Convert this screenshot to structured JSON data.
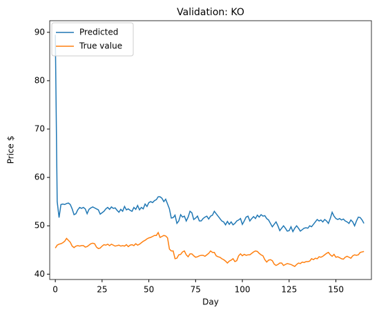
{
  "chart_data": {
    "type": "line",
    "title": "Validation: KO",
    "xlabel": "Day",
    "ylabel": "Price $",
    "x": [
      0,
      1,
      2,
      3,
      4,
      5,
      6,
      7,
      8,
      9,
      10,
      11,
      12,
      13,
      14,
      15,
      16,
      17,
      18,
      19,
      20,
      21,
      22,
      23,
      24,
      25,
      26,
      27,
      28,
      29,
      30,
      31,
      32,
      33,
      34,
      35,
      36,
      37,
      38,
      39,
      40,
      41,
      42,
      43,
      44,
      45,
      46,
      47,
      48,
      49,
      50,
      51,
      52,
      53,
      54,
      55,
      56,
      57,
      58,
      59,
      60,
      61,
      62,
      63,
      64,
      65,
      66,
      67,
      68,
      69,
      70,
      71,
      72,
      73,
      74,
      75,
      76,
      77,
      78,
      79,
      80,
      81,
      82,
      83,
      84,
      85,
      86,
      87,
      88,
      89,
      90,
      91,
      92,
      93,
      94,
      95,
      96,
      97,
      98,
      99,
      100,
      101,
      102,
      103,
      104,
      105,
      106,
      107,
      108,
      109,
      110,
      111,
      112,
      113,
      114,
      115,
      116,
      117,
      118,
      119,
      120,
      121,
      122,
      123,
      124,
      125,
      126,
      127,
      128,
      129,
      130,
      131,
      132,
      133,
      134,
      135,
      136,
      137,
      138,
      139,
      140,
      141,
      142,
      143,
      144,
      145,
      146,
      147,
      148,
      149,
      150,
      151,
      152,
      153,
      154,
      155,
      156,
      157,
      158,
      159,
      160,
      161,
      162,
      163,
      164,
      165
    ],
    "series": [
      {
        "name": "Predicted",
        "color": "#1f77b4",
        "values": [
          89.5,
          55,
          51.7,
          54.4,
          54.5,
          54.4,
          54.6,
          54.7,
          54.4,
          53.5,
          52.3,
          52.5,
          53.3,
          53.8,
          53.6,
          53.8,
          53.5,
          52.5,
          53.4,
          53.7,
          53.9,
          53.7,
          53.5,
          53.3,
          52.4,
          52.7,
          53.0,
          53.5,
          53.8,
          53.4,
          53.9,
          53.6,
          53.7,
          53.2,
          52.8,
          53.4,
          53.0,
          54.0,
          53.3,
          53.5,
          53.2,
          53.0,
          53.8,
          53.4,
          54.2,
          53.3,
          53.8,
          53.5,
          54.5,
          54.0,
          54.8,
          55.0,
          54.8,
          55.2,
          55.4,
          56.0,
          56.0,
          55.7,
          55.0,
          55.5,
          54.5,
          53.5,
          51.6,
          51.7,
          52.2,
          50.5,
          51.0,
          52.3,
          51.8,
          52.0,
          51.0,
          51.8,
          53.0,
          52.7,
          51.3,
          51.6,
          52.0,
          51.0,
          51.0,
          51.5,
          51.8,
          52.0,
          51.4,
          52.0,
          52.2,
          53.0,
          52.5,
          52.0,
          51.5,
          51.0,
          50.8,
          50.2,
          50.9,
          50.3,
          50.8,
          50.2,
          50.5,
          51.0,
          51.2,
          51.5,
          50.3,
          51.0,
          51.8,
          52.0,
          51.0,
          51.5,
          51.9,
          51.5,
          52.2,
          51.8,
          52.3,
          52.0,
          52.1,
          51.5,
          51.2,
          50.5,
          49.8,
          50.3,
          50.8,
          50.0,
          49.0,
          49.5,
          50.0,
          49.5,
          48.9,
          49.0,
          49.8,
          48.8,
          49.5,
          50.0,
          49.5,
          48.9,
          49.2,
          49.5,
          49.6,
          49.5,
          50.0,
          49.8,
          50.3,
          50.8,
          51.3,
          51.0,
          51.2,
          50.8,
          51.3,
          51.0,
          50.5,
          51.5,
          52.8,
          52.0,
          51.5,
          51.3,
          51.5,
          51.2,
          51.4,
          51.0,
          50.8,
          50.5,
          51.2,
          50.8,
          50.0,
          51.0,
          51.8,
          51.7,
          51.2,
          50.5
        ]
      },
      {
        "name": "True value",
        "color": "#ff7f0e",
        "values": [
          45.4,
          46.0,
          46.2,
          46.3,
          46.5,
          46.8,
          47.4,
          47.0,
          46.6,
          45.8,
          45.5,
          45.8,
          45.9,
          45.8,
          45.9,
          45.9,
          45.6,
          45.7,
          46.0,
          46.3,
          46.4,
          46.3,
          45.6,
          45.3,
          45.4,
          45.8,
          46.1,
          46.0,
          46.2,
          45.9,
          46.2,
          46.0,
          45.8,
          45.9,
          46.0,
          45.8,
          45.9,
          45.8,
          46.1,
          45.7,
          46.0,
          46.1,
          45.9,
          46.3,
          46.0,
          46.2,
          46.5,
          46.8,
          47.0,
          47.3,
          47.5,
          47.6,
          47.8,
          48.0,
          48.0,
          48.6,
          47.6,
          47.8,
          48.0,
          47.9,
          47.5,
          45.2,
          44.8,
          44.8,
          43.2,
          43.3,
          44.0,
          44.1,
          44.6,
          44.8,
          44.0,
          43.6,
          44.2,
          44.2,
          43.8,
          43.5,
          43.6,
          43.8,
          43.9,
          43.9,
          43.7,
          44.0,
          44.3,
          44.8,
          44.5,
          44.5,
          43.8,
          43.6,
          43.5,
          43.2,
          43.0,
          42.7,
          42.3,
          42.7,
          42.9,
          43.2,
          42.6,
          42.8,
          43.8,
          44.2,
          43.8,
          44.1,
          43.9,
          44.0,
          44.0,
          44.3,
          44.6,
          44.8,
          44.7,
          44.3,
          44.0,
          43.8,
          43.0,
          42.5,
          42.9,
          43.0,
          42.8,
          42.1,
          41.8,
          42.0,
          42.3,
          42.3,
          41.8,
          42.0,
          42.2,
          42.1,
          42.0,
          41.8,
          41.6,
          42.0,
          42.3,
          42.2,
          42.5,
          42.4,
          42.6,
          42.6,
          42.7,
          43.2,
          43.0,
          43.3,
          43.2,
          43.6,
          43.5,
          43.7,
          44.0,
          44.3,
          44.5,
          44.0,
          43.7,
          44.1,
          43.5,
          43.6,
          43.4,
          43.2,
          43.1,
          43.5,
          43.7,
          43.5,
          43.3,
          43.8,
          44.0,
          43.9,
          44.0,
          44.5,
          44.6,
          44.7
        ]
      }
    ],
    "xlim": [
      -3,
      169
    ],
    "xticks": [
      0,
      25,
      50,
      75,
      100,
      125,
      150
    ],
    "ylim": [
      38.9,
      92.4
    ],
    "yticks": [
      40,
      50,
      60,
      70,
      80,
      90
    ],
    "legend": "upper left"
  }
}
